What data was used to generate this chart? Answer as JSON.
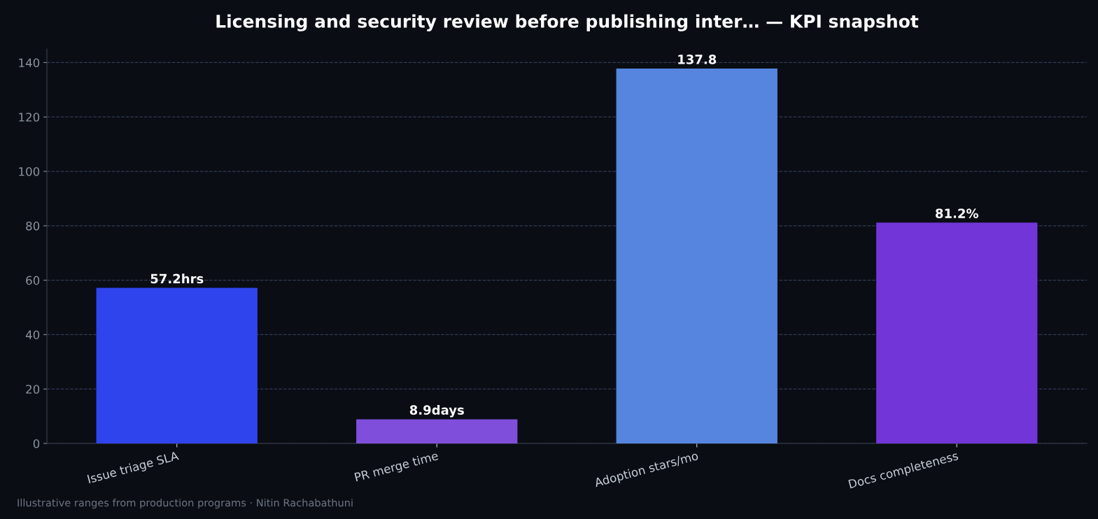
{
  "chart_data": {
    "type": "bar",
    "title": "Licensing and security review before publishing inter… — KPI snapshot",
    "categories": [
      "Issue triage SLA",
      "PR merge time",
      "Adoption stars/mo",
      "Docs completeness"
    ],
    "values": [
      57.2,
      8.9,
      137.8,
      81.2
    ],
    "value_labels": [
      "57.2hrs",
      "8.9days",
      "137.8",
      "81.2%"
    ],
    "colors": [
      "#2f44ec",
      "#7f4fdc",
      "#5585de",
      "#7235d8"
    ],
    "ylim": [
      0,
      145
    ],
    "yticks": [
      0,
      20,
      40,
      60,
      80,
      100,
      120,
      140
    ],
    "grid": "y",
    "annotations": [
      "Illustrative ranges from production programs · Nitin Rachabathuni"
    ]
  }
}
